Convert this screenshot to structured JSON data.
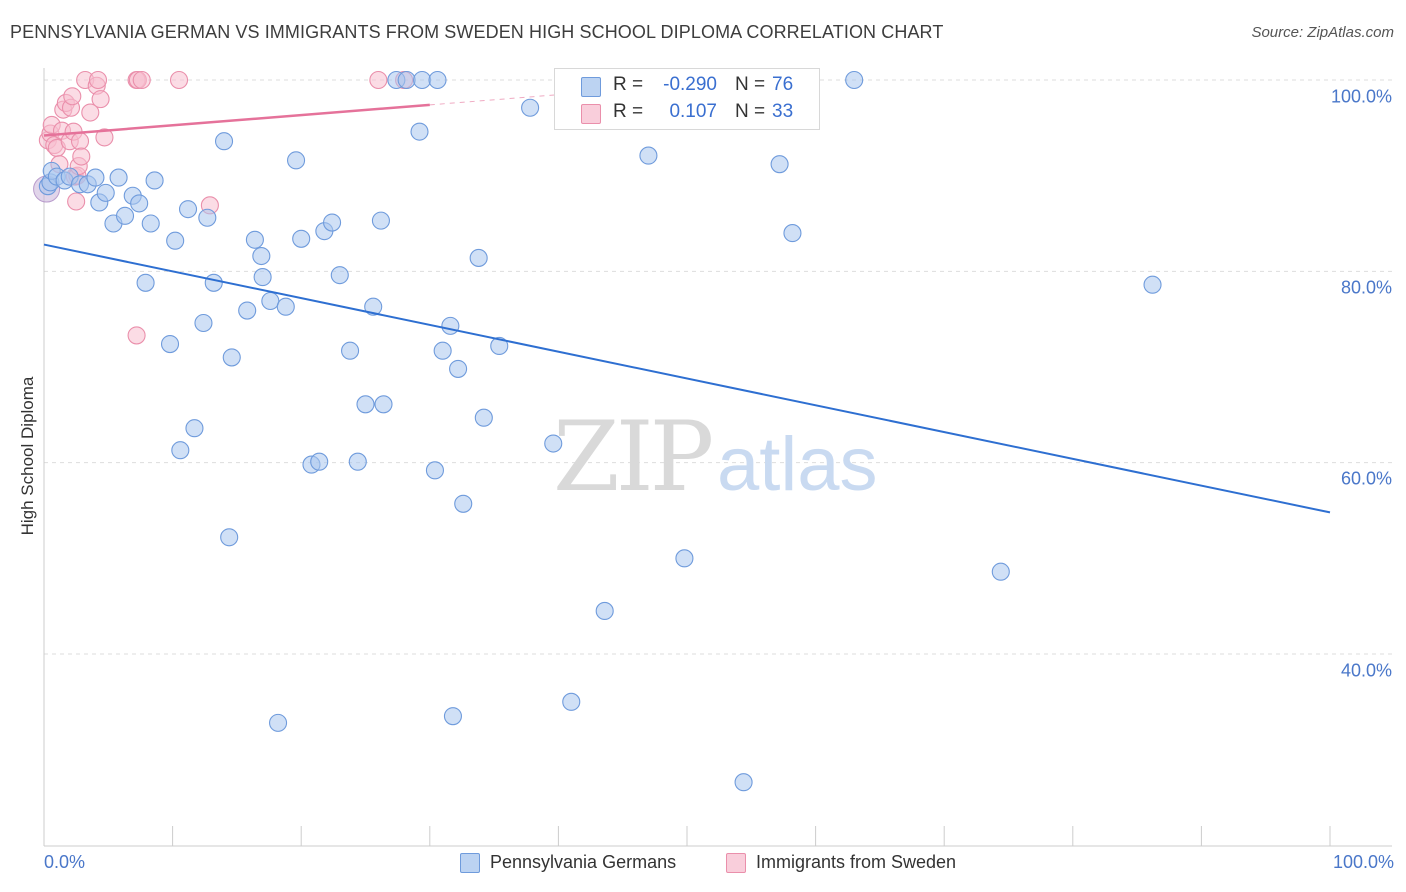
{
  "title": "PENNSYLVANIA GERMAN VS IMMIGRANTS FROM SWEDEN HIGH SCHOOL DIPLOMA CORRELATION CHART",
  "source": "Source: ZipAtlas.com",
  "watermark": {
    "zip": "ZIP",
    "atlas": "atlas"
  },
  "colors": {
    "blue_fill": "#a9c6ee",
    "blue_stroke": "#6f9bdc",
    "blue_line": "#2e6fd1",
    "pink_fill": "#f7bfd0",
    "pink_stroke": "#ea8fab",
    "pink_line": "#e5729a",
    "grid": "#dddddd",
    "axis_text": "#4a77c9"
  },
  "legend_top": [
    {
      "r_label": "R =",
      "r_value": "-0.290",
      "n_label": "N =",
      "n_value": "76"
    },
    {
      "r_label": "R =",
      "r_value": "0.107",
      "n_label": "N =",
      "n_value": "33"
    }
  ],
  "chart_data": {
    "type": "scatter",
    "title": "PENNSYLVANIA GERMAN VS IMMIGRANTS FROM SWEDEN HIGH SCHOOL DIPLOMA CORRELATION CHART",
    "xlabel": "",
    "ylabel": "High School Diploma",
    "xlim": [
      0,
      100
    ],
    "ylim": [
      20,
      102
    ],
    "x_tick_labels": [
      "0.0%",
      "100.0%"
    ],
    "y_ticks": [
      40,
      60,
      80,
      100
    ],
    "y_tick_labels": [
      "40.0%",
      "60.0%",
      "80.0%",
      "100.0%"
    ],
    "grid": true,
    "legend_position": "bottom-center",
    "series": [
      {
        "name": "Pennsylvania Germans",
        "color": "blue",
        "R": -0.29,
        "N": 76,
        "trend": {
          "x": [
            0,
            100
          ],
          "y": [
            82.8,
            54.8
          ]
        },
        "points": [
          [
            0.3,
            88.9
          ],
          [
            0.5,
            89.3
          ],
          [
            0.6,
            90.5
          ],
          [
            1.0,
            89.9
          ],
          [
            1.6,
            89.5
          ],
          [
            2.0,
            89.9
          ],
          [
            2.8,
            89.1
          ],
          [
            3.4,
            89.1
          ],
          [
            4.0,
            89.8
          ],
          [
            4.3,
            87.2
          ],
          [
            4.8,
            88.2
          ],
          [
            5.4,
            85.0
          ],
          [
            5.8,
            89.8
          ],
          [
            6.3,
            85.8
          ],
          [
            6.9,
            87.9
          ],
          [
            7.4,
            87.1
          ],
          [
            7.9,
            78.8
          ],
          [
            8.3,
            85.0
          ],
          [
            8.6,
            89.5
          ],
          [
            9.8,
            72.4
          ],
          [
            10.2,
            83.2
          ],
          [
            10.6,
            61.3
          ],
          [
            11.2,
            86.5
          ],
          [
            11.7,
            63.6
          ],
          [
            12.4,
            74.6
          ],
          [
            12.7,
            85.6
          ],
          [
            13.2,
            78.8
          ],
          [
            14.0,
            93.6
          ],
          [
            14.4,
            52.2
          ],
          [
            14.6,
            71.0
          ],
          [
            15.8,
            75.9
          ],
          [
            16.4,
            83.3
          ],
          [
            16.9,
            81.6
          ],
          [
            17.0,
            79.4
          ],
          [
            17.6,
            76.9
          ],
          [
            18.2,
            32.8
          ],
          [
            18.8,
            76.3
          ],
          [
            19.6,
            91.6
          ],
          [
            20.0,
            83.4
          ],
          [
            20.8,
            59.8
          ],
          [
            21.4,
            60.1
          ],
          [
            21.8,
            84.2
          ],
          [
            22.4,
            85.1
          ],
          [
            23.0,
            79.6
          ],
          [
            23.8,
            71.7
          ],
          [
            24.4,
            60.1
          ],
          [
            25.0,
            66.1
          ],
          [
            25.6,
            76.3
          ],
          [
            26.2,
            85.3
          ],
          [
            26.4,
            66.1
          ],
          [
            27.4,
            100.0
          ],
          [
            28.2,
            100.0
          ],
          [
            29.2,
            94.6
          ],
          [
            29.4,
            100.0
          ],
          [
            30.4,
            59.2
          ],
          [
            30.6,
            100.0
          ],
          [
            31.0,
            71.7
          ],
          [
            31.6,
            74.3
          ],
          [
            31.8,
            33.5
          ],
          [
            32.2,
            69.8
          ],
          [
            32.6,
            55.7
          ],
          [
            33.8,
            81.4
          ],
          [
            34.2,
            64.7
          ],
          [
            35.4,
            72.2
          ],
          [
            37.8,
            97.1
          ],
          [
            39.6,
            62.0
          ],
          [
            41.0,
            35.0
          ],
          [
            43.6,
            44.5
          ],
          [
            47.0,
            92.1
          ],
          [
            49.8,
            50.0
          ],
          [
            54.4,
            26.6
          ],
          [
            57.2,
            91.2
          ],
          [
            58.2,
            84.0
          ],
          [
            63.0,
            100.0
          ],
          [
            74.4,
            48.6
          ],
          [
            86.2,
            78.6
          ]
        ]
      },
      {
        "name": "Immigrants from Sweden",
        "color": "pink",
        "R": 0.107,
        "N": 33,
        "trend": {
          "x": [
            0,
            30
          ],
          "y": [
            94.2,
            97.4
          ]
        },
        "points": [
          [
            0.3,
            93.7
          ],
          [
            0.5,
            94.4
          ],
          [
            0.6,
            95.3
          ],
          [
            0.8,
            93.2
          ],
          [
            1.0,
            92.9
          ],
          [
            1.2,
            91.2
          ],
          [
            1.4,
            94.7
          ],
          [
            1.5,
            96.9
          ],
          [
            1.7,
            97.6
          ],
          [
            2.0,
            93.6
          ],
          [
            2.1,
            97.1
          ],
          [
            2.2,
            98.3
          ],
          [
            2.3,
            94.6
          ],
          [
            2.4,
            89.9
          ],
          [
            2.5,
            87.3
          ],
          [
            2.6,
            90.0
          ],
          [
            2.7,
            91.0
          ],
          [
            2.8,
            93.6
          ],
          [
            2.9,
            92.0
          ],
          [
            3.2,
            100.0
          ],
          [
            3.6,
            96.6
          ],
          [
            4.1,
            99.4
          ],
          [
            4.2,
            100.0
          ],
          [
            4.4,
            98.0
          ],
          [
            4.7,
            94.0
          ],
          [
            7.2,
            73.3
          ],
          [
            7.2,
            100.0
          ],
          [
            7.3,
            100.0
          ],
          [
            7.6,
            100.0
          ],
          [
            10.5,
            100.0
          ],
          [
            12.9,
            86.9
          ],
          [
            26.0,
            100.0
          ],
          [
            28.0,
            100.0
          ]
        ]
      }
    ]
  }
}
